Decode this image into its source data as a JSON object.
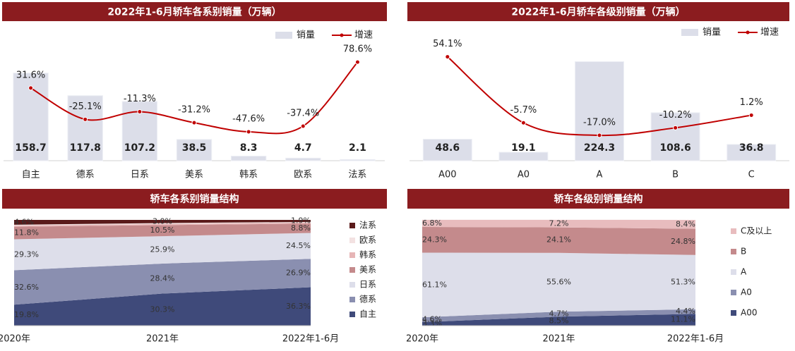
{
  "chart_data": [
    {
      "type": "bar",
      "title": "2022年1-6月轿车各系别销量（万辆）",
      "categories": [
        "自主",
        "德系",
        "日系",
        "美系",
        "韩系",
        "欧系",
        "法系"
      ],
      "series": [
        {
          "name": "销量",
          "color": "#dcdee9",
          "values": [
            158.7,
            117.8,
            107.2,
            38.5,
            8.3,
            4.7,
            2.1
          ]
        },
        {
          "name": "增速",
          "color": "#c00000",
          "axis": "y2",
          "values": [
            31.6,
            -25.1,
            -11.3,
            -31.2,
            -47.6,
            -37.4,
            78.6
          ],
          "value_labels": [
            "31.6%",
            "-25.1%",
            "-11.3%",
            "-31.2%",
            "-47.6%",
            "-37.4%",
            "78.6%"
          ]
        }
      ],
      "ylim": [
        0,
        240
      ],
      "y2lim": [
        -100,
        140
      ]
    },
    {
      "type": "bar",
      "title": "2022年1-6月轿车各级别销量（万辆）",
      "categories": [
        "A00",
        "A0",
        "A",
        "B",
        "C"
      ],
      "series": [
        {
          "name": "销量",
          "color": "#dcdee9",
          "values": [
            48.6,
            19.1,
            224.3,
            108.6,
            36.8
          ]
        },
        {
          "name": "增速",
          "color": "#c00000",
          "axis": "y2",
          "values": [
            54.1,
            -5.7,
            -17.0,
            -10.2,
            1.2
          ],
          "value_labels": [
            "54.1%",
            "-5.7%",
            "-17.0%",
            "-10.2%",
            "1.2%"
          ]
        }
      ],
      "ylim": [
        0,
        300
      ],
      "y2lim": [
        -40,
        80
      ]
    },
    {
      "type": "area",
      "title": "轿车各系别销量结构",
      "categories": [
        "2020年",
        "2021年",
        "2022年1-6月"
      ],
      "series": [
        {
          "name": "自主",
          "color": "#3f4a7a",
          "values": [
            19.8,
            30.3,
            36.3
          ],
          "value_labels": [
            "19.8%",
            "30.3%",
            "36.3%"
          ]
        },
        {
          "name": "德系",
          "color": "#8a8fb0",
          "values": [
            32.6,
            28.4,
            26.9
          ],
          "value_labels": [
            "32.6%",
            "28.4%",
            "26.9%"
          ]
        },
        {
          "name": "日系",
          "color": "#dddeea",
          "values": [
            29.3,
            25.9,
            24.5
          ],
          "value_labels": [
            "29.3%",
            "25.9%",
            "24.5%"
          ]
        },
        {
          "name": "美系",
          "color": "#c48a8c",
          "values": [
            11.8,
            10.5,
            8.8
          ],
          "value_labels": [
            "11.8%",
            "10.5%",
            "8.8%"
          ]
        },
        {
          "name": "韩系",
          "color": "#e6b5b6",
          "values": [
            1.2,
            1.1,
            1.0
          ]
        },
        {
          "name": "欧系",
          "color": "#f3e2e2",
          "values": [
            0.7,
            0.8,
            0.6
          ]
        },
        {
          "name": "法系",
          "color": "#5a1a1a",
          "values": [
            4.6,
            3.0,
            1.9
          ],
          "value_labels": [
            "4.6%",
            "3.0%",
            "1.9%"
          ]
        }
      ],
      "ylim": [
        0,
        100
      ]
    },
    {
      "type": "area",
      "title": "轿车各级别销量结构",
      "categories": [
        "2020年",
        "2021年",
        "2022年1-6月"
      ],
      "series": [
        {
          "name": "A00",
          "color": "#3f4a7a",
          "values": [
            3.3,
            8.5,
            11.1
          ],
          "value_labels": [
            "3.3%",
            "8.5%",
            "11.1%"
          ]
        },
        {
          "name": "A0",
          "color": "#8a8fb0",
          "values": [
            4.6,
            4.7,
            4.4
          ],
          "value_labels": [
            "4.6%",
            "4.7%",
            "4.4%"
          ]
        },
        {
          "name": "A",
          "color": "#dddeea",
          "values": [
            61.1,
            55.6,
            51.3
          ],
          "value_labels": [
            "61.1%",
            "55.6%",
            "51.3%"
          ]
        },
        {
          "name": "B",
          "color": "#c48a8c",
          "values": [
            24.3,
            24.1,
            24.8
          ],
          "value_labels": [
            "24.3%",
            "24.1%",
            "24.8%"
          ]
        },
        {
          "name": "C及以上",
          "color": "#e8bcbe",
          "values": [
            6.8,
            7.2,
            8.4
          ],
          "value_labels": [
            "6.8%",
            "7.2%",
            "8.4%"
          ]
        }
      ],
      "ylim": [
        0,
        100
      ]
    }
  ]
}
